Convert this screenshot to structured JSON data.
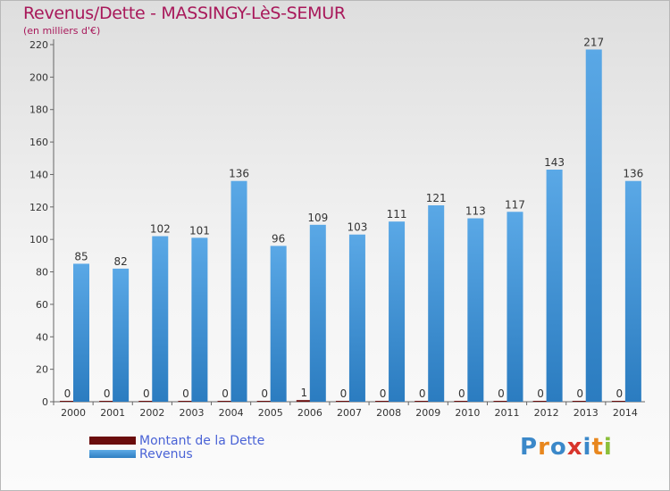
{
  "header": {
    "title": "Revenus/Dette - MASSINGY-LèS-SEMUR",
    "subtitle": "(en milliers d'€)"
  },
  "legend": {
    "items": [
      {
        "label": "Montant de la Dette",
        "color": "#6b0d0d"
      },
      {
        "label": "Revenus",
        "color": "#3f94d9"
      }
    ]
  },
  "logo": {
    "text": "Proxiti",
    "colors": [
      "#3b88c9",
      "#e8871e",
      "#3b88c9",
      "#d8342b",
      "#3b88c9",
      "#e8871e",
      "#8bbf3a"
    ]
  },
  "colors": {
    "title": "#a8185a",
    "dette": "#6b0d0d",
    "revenus": "#3f94d9",
    "axis": "#666666"
  },
  "chart_data": {
    "type": "bar",
    "title": "Revenus/Dette - MASSINGY-LèS-SEMUR",
    "ylabel": "(en milliers d'€)",
    "xlabel": "",
    "categories": [
      "2000",
      "2001",
      "2002",
      "2003",
      "2004",
      "2005",
      "2006",
      "2007",
      "2008",
      "2009",
      "2010",
      "2011",
      "2012",
      "2013",
      "2014"
    ],
    "series": [
      {
        "name": "Montant de la Dette",
        "values": [
          0,
          0,
          0,
          0,
          0,
          0,
          1,
          0,
          0,
          0,
          0,
          0,
          0,
          0,
          0
        ]
      },
      {
        "name": "Revenus",
        "values": [
          85,
          82,
          102,
          101,
          136,
          96,
          109,
          103,
          111,
          121,
          113,
          117,
          143,
          217,
          136
        ]
      }
    ],
    "ylim": [
      0,
      220
    ],
    "yticks": [
      0,
      20,
      40,
      60,
      80,
      100,
      120,
      140,
      160,
      180,
      200,
      220
    ],
    "grid": false,
    "legend": "bottom-left"
  }
}
